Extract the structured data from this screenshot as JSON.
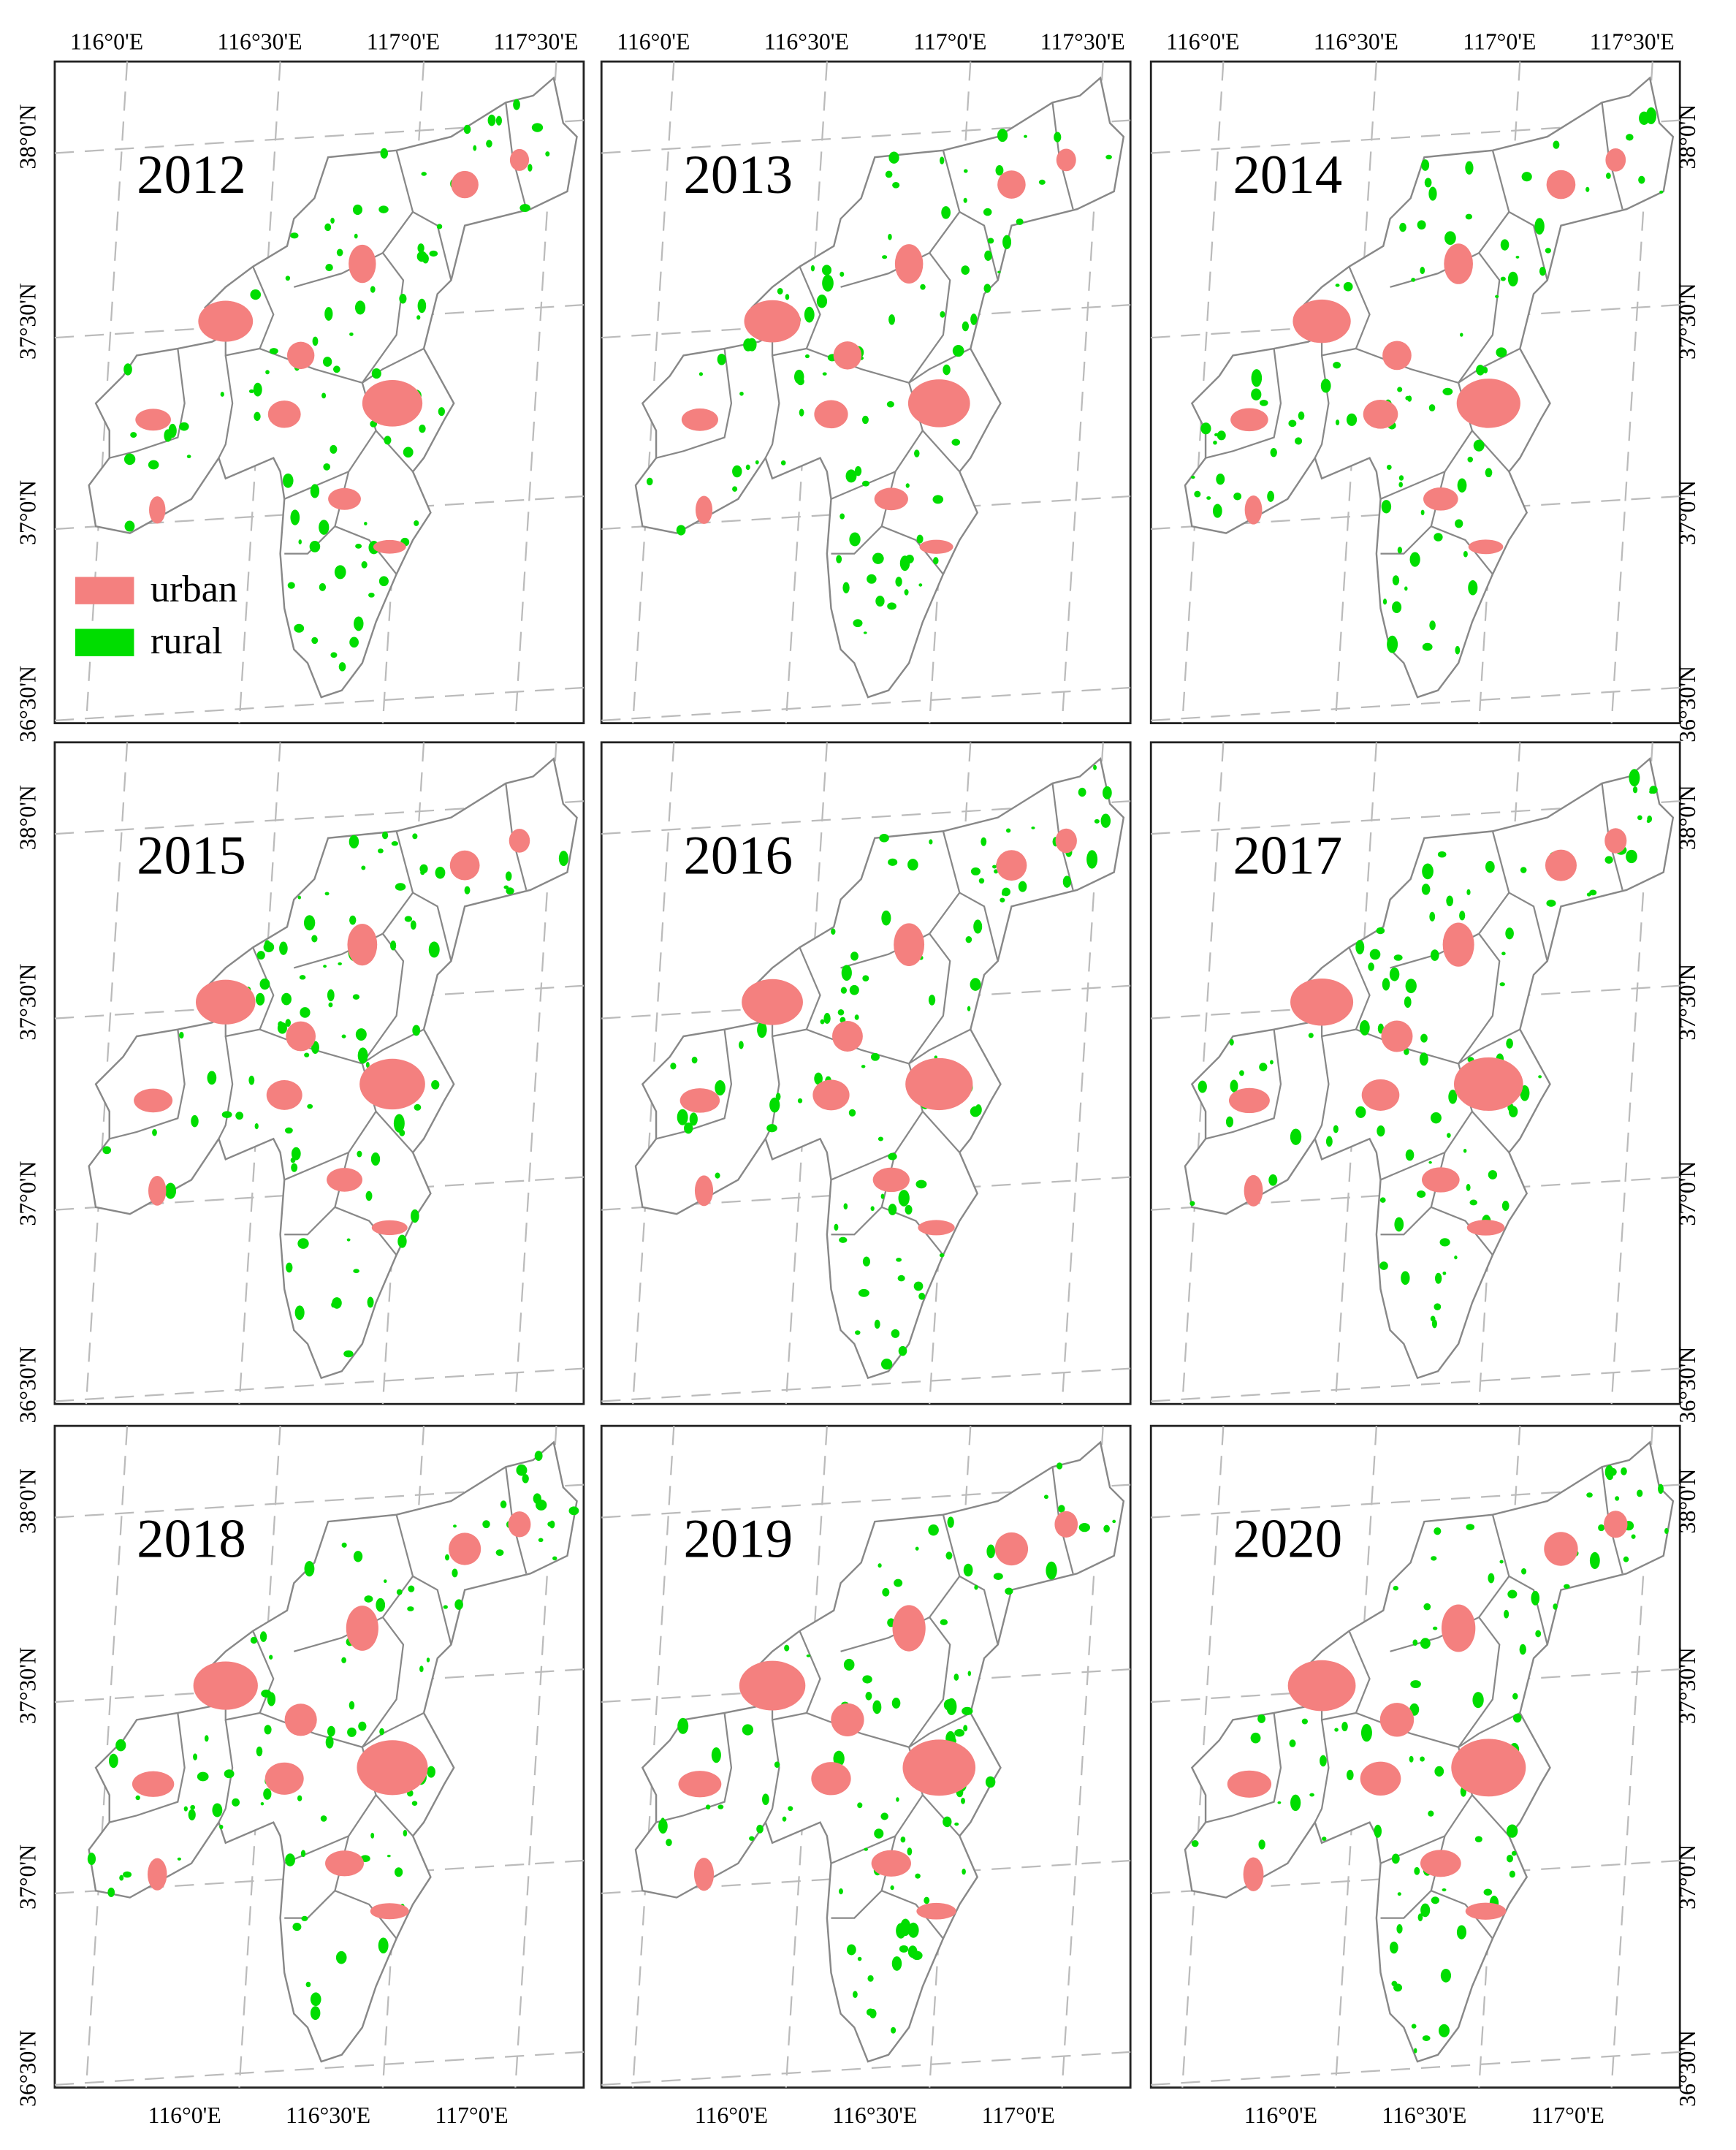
{
  "panels": [
    {
      "year": "2012"
    },
    {
      "year": "2013"
    },
    {
      "year": "2014"
    },
    {
      "year": "2015"
    },
    {
      "year": "2016"
    },
    {
      "year": "2017"
    },
    {
      "year": "2018"
    },
    {
      "year": "2019"
    },
    {
      "year": "2020"
    }
  ],
  "legend": {
    "items": [
      "urban",
      "rural"
    ]
  },
  "axes": {
    "top": [
      "116°0'E",
      "116°30'E",
      "117°0'E",
      "117°30'E"
    ],
    "bottom": [
      "116°0'E",
      "116°30'E",
      "117°0'E"
    ],
    "left": [
      "38°0'N",
      "37°30'N",
      "37°0'N",
      "36°30'N"
    ],
    "right": [
      "38°0'N",
      "37°30'N",
      "37°0'N",
      "36°30'N"
    ]
  }
}
